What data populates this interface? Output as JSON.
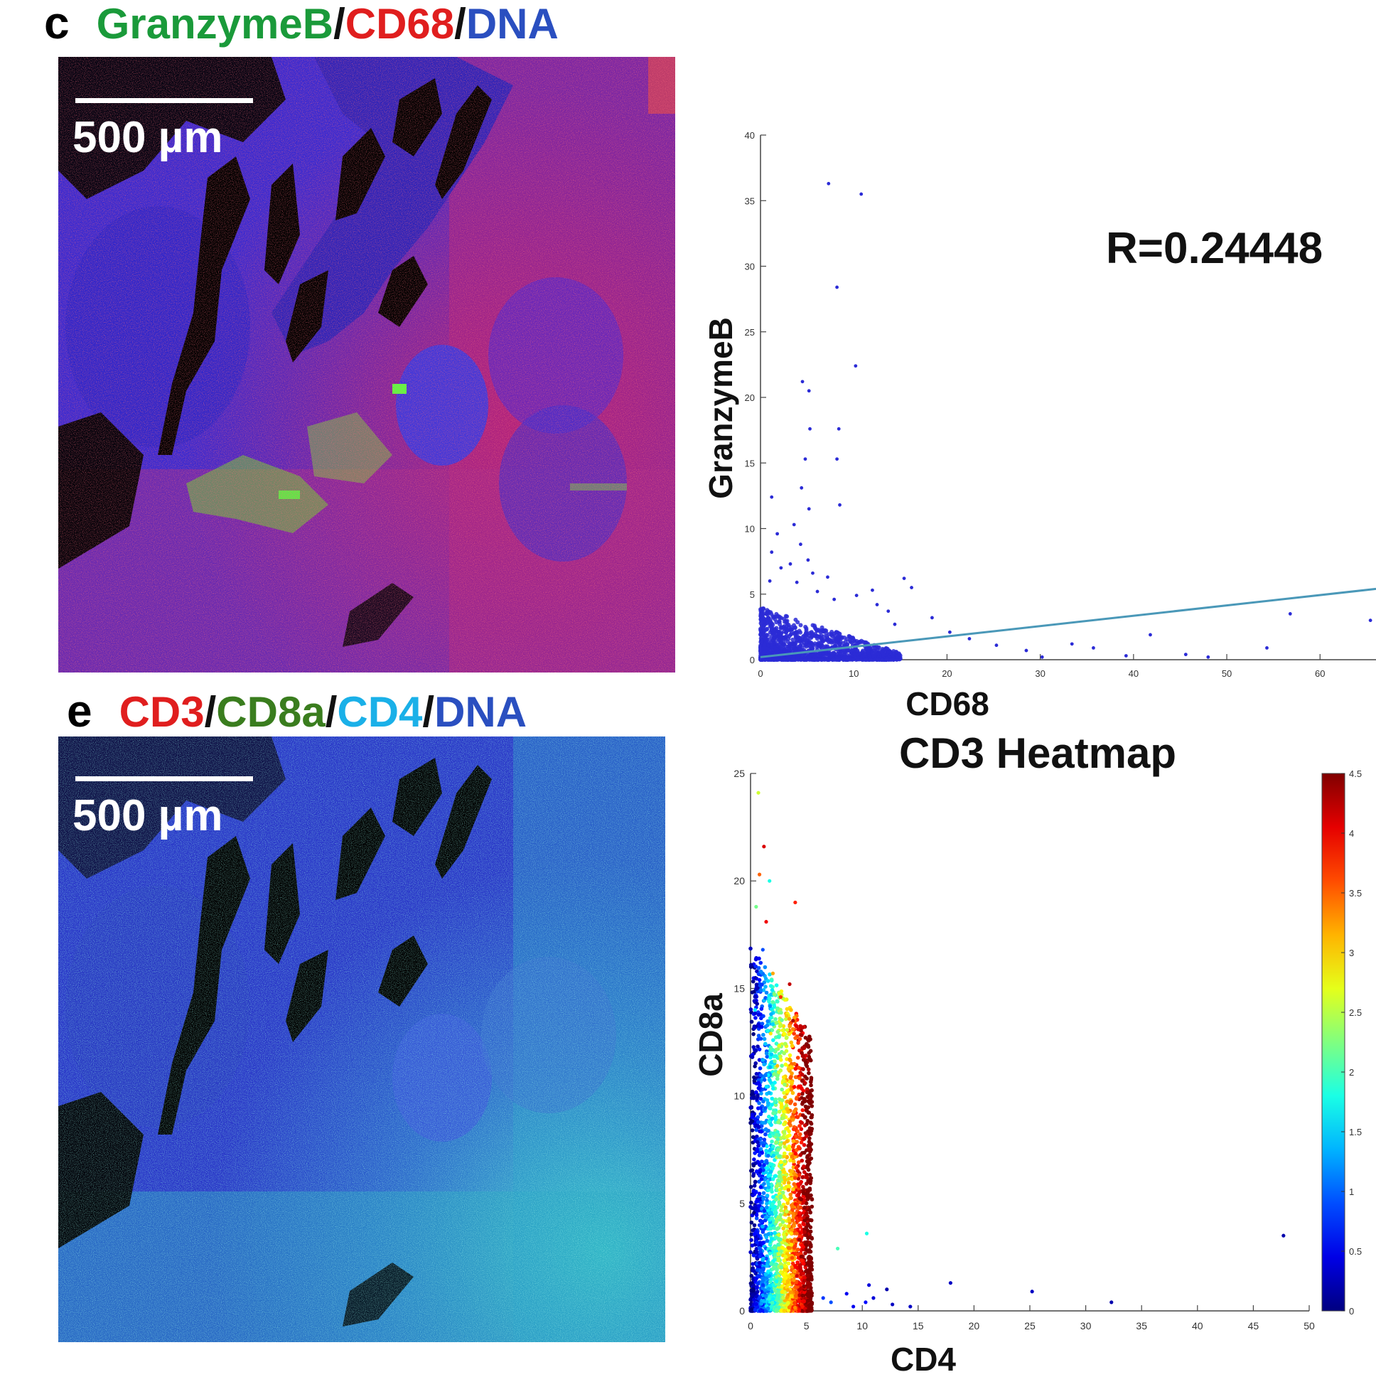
{
  "panel_c": {
    "letter": "c",
    "title_parts": [
      {
        "text": "GranzymeB",
        "color": "#1a9a3a"
      },
      {
        "text": "/",
        "color": "#111111"
      },
      {
        "text": "CD68",
        "color": "#e01e1e"
      },
      {
        "text": "/",
        "color": "#111111"
      },
      {
        "text": "DNA",
        "color": "#2a4fc0"
      }
    ],
    "scale_bar_label": "500 µm"
  },
  "panel_e": {
    "letter": "e",
    "title_parts": [
      {
        "text": "CD3",
        "color": "#e01e1e"
      },
      {
        "text": "/",
        "color": "#111111"
      },
      {
        "text": "CD8a",
        "color": "#3a7d1e"
      },
      {
        "text": "/",
        "color": "#111111"
      },
      {
        "text": "CD4",
        "color": "#1ab0e8"
      },
      {
        "text": "/",
        "color": "#111111"
      },
      {
        "text": "DNA",
        "color": "#2a4fc0"
      }
    ],
    "scale_bar_label": "500 µm"
  },
  "chart_data": [
    {
      "type": "scatter",
      "title": "",
      "annotation": "R=0.24448",
      "xlabel": "CD68",
      "ylabel": "GranzymeB",
      "xlim": [
        0,
        66
      ],
      "ylim": [
        0,
        40
      ],
      "xticks": [
        0,
        10,
        20,
        30,
        40,
        50,
        60
      ],
      "yticks": [
        0,
        5,
        10,
        15,
        20,
        25,
        30,
        35,
        40
      ],
      "point_color": "#2b2bd6",
      "dense_cluster": {
        "x_range": [
          0,
          15
        ],
        "y_range": [
          0,
          4
        ]
      },
      "points": [
        [
          4.5,
          21.2
        ],
        [
          5.2,
          20.5
        ],
        [
          7.3,
          36.3
        ],
        [
          10.8,
          35.5
        ],
        [
          8.2,
          28.4
        ],
        [
          10.2,
          22.4
        ],
        [
          5.3,
          17.6
        ],
        [
          8.4,
          17.6
        ],
        [
          4.8,
          15.3
        ],
        [
          8.2,
          15.3
        ],
        [
          4.4,
          13.1
        ],
        [
          1.2,
          12.4
        ],
        [
          5.2,
          11.5
        ],
        [
          8.5,
          11.8
        ],
        [
          3.6,
          10.3
        ],
        [
          1.8,
          9.6
        ],
        [
          4.3,
          8.8
        ],
        [
          1.2,
          8.2
        ],
        [
          5.1,
          7.6
        ],
        [
          3.2,
          7.3
        ],
        [
          2.2,
          7.0
        ],
        [
          5.6,
          6.6
        ],
        [
          7.2,
          6.3
        ],
        [
          1.0,
          6.0
        ],
        [
          15.4,
          6.2
        ],
        [
          3.9,
          5.9
        ],
        [
          6.1,
          5.2
        ],
        [
          12.0,
          5.3
        ],
        [
          16.2,
          5.5
        ],
        [
          10.3,
          4.9
        ],
        [
          7.9,
          4.6
        ],
        [
          12.5,
          4.2
        ],
        [
          13.7,
          3.7
        ],
        [
          18.4,
          3.2
        ],
        [
          14.4,
          2.7
        ],
        [
          20.3,
          2.1
        ],
        [
          22.4,
          1.6
        ],
        [
          25.3,
          1.1
        ],
        [
          33.4,
          1.2
        ],
        [
          35.7,
          0.9
        ],
        [
          28.5,
          0.7
        ],
        [
          41.8,
          1.9
        ],
        [
          45.6,
          0.4
        ],
        [
          54.3,
          0.9
        ],
        [
          56.8,
          3.5
        ],
        [
          65.4,
          3.0
        ],
        [
          48.0,
          0.2
        ],
        [
          39.2,
          0.3
        ],
        [
          30.2,
          0.2
        ]
      ],
      "fit_line": {
        "x": [
          0,
          66
        ],
        "y": [
          0.2,
          5.4
        ]
      }
    },
    {
      "type": "scatter",
      "title": "CD3 Heatmap",
      "xlabel": "CD4",
      "ylabel": "CD8a",
      "xlim": [
        0,
        50
      ],
      "ylim": [
        0,
        25
      ],
      "xticks": [
        0,
        5,
        10,
        15,
        20,
        25,
        30,
        35,
        40,
        45,
        50
      ],
      "yticks": [
        0,
        5,
        10,
        15,
        20,
        25
      ],
      "colorbar": {
        "min": 0,
        "max": 4.5,
        "ticks": [
          0,
          0.5,
          1,
          1.5,
          2,
          2.5,
          3,
          3.5,
          4,
          4.5
        ],
        "colormap": "jet"
      },
      "dense_cluster": {
        "x_range": [
          0,
          5.5
        ],
        "y_range": [
          0,
          17
        ]
      },
      "points": [
        [
          1.2,
          21.6
        ],
        [
          0.8,
          20.3
        ],
        [
          1.7,
          20.0
        ],
        [
          0.5,
          18.8
        ],
        [
          1.4,
          18.1
        ],
        [
          4.0,
          19.0
        ],
        [
          0.7,
          24.1
        ],
        [
          1.1,
          16.8
        ],
        [
          2.0,
          15.7
        ],
        [
          3.5,
          15.2
        ],
        [
          2.7,
          14.6
        ],
        [
          0.4,
          14.0
        ],
        [
          3.8,
          13.5
        ],
        [
          1.8,
          12.9
        ],
        [
          4.6,
          12.0
        ],
        [
          2.4,
          11.4
        ],
        [
          4.9,
          10.6
        ],
        [
          1.5,
          9.8
        ],
        [
          10.4,
          3.6
        ],
        [
          7.8,
          2.9
        ],
        [
          10.6,
          1.2
        ],
        [
          12.2,
          1.0
        ],
        [
          8.6,
          0.8
        ],
        [
          10.3,
          0.4
        ],
        [
          12.7,
          0.3
        ],
        [
          6.5,
          0.6
        ],
        [
          7.2,
          0.4
        ],
        [
          9.2,
          0.2
        ],
        [
          17.9,
          1.3
        ],
        [
          25.2,
          0.9
        ],
        [
          32.3,
          0.4
        ],
        [
          47.7,
          3.5
        ],
        [
          14.3,
          0.2
        ],
        [
          11.0,
          0.6
        ]
      ],
      "point_values": [
        4.1,
        3.5,
        1.8,
        2.2,
        4.0,
        3.8,
        2.6,
        0.9,
        3.2,
        4.2,
        3.7,
        1.6,
        4.3,
        2.9,
        4.4,
        3.1,
        4.2,
        1.4,
        1.8,
        2.0,
        0.4,
        0.2,
        0.5,
        0.6,
        0.3,
        0.8,
        0.9,
        0.5,
        0.3,
        0.3,
        0.2,
        0.2,
        0.3,
        0.4
      ]
    }
  ]
}
